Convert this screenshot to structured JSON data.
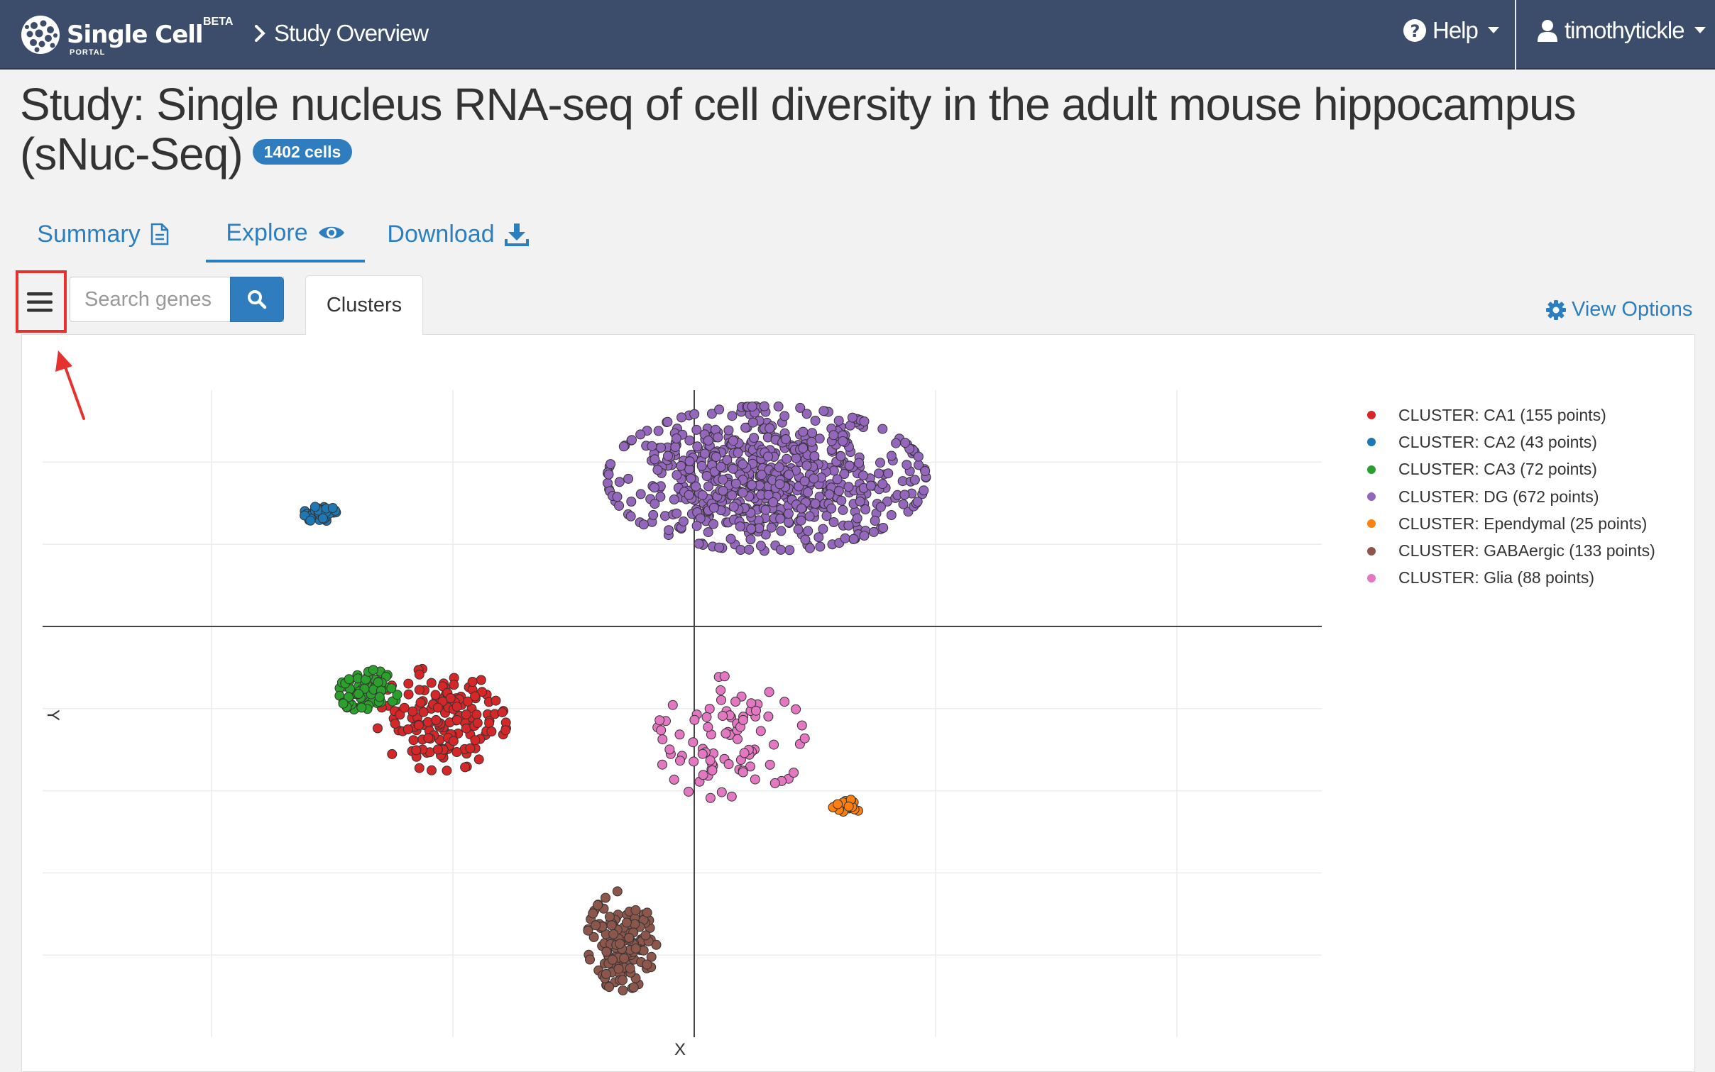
{
  "navbar": {
    "brand_title": "Single Cell",
    "brand_sub": "PORTAL",
    "brand_badge": "BETA",
    "breadcrumb": "Study Overview",
    "help_label": "Help",
    "user_label": "timothytickle"
  },
  "study": {
    "title": "Study: Single nucleus RNA-seq of cell diversity in the adult mouse hippocampus (sNuc-Seq)",
    "cells_badge": "1402 cells"
  },
  "tabs": [
    {
      "label": "Summary",
      "icon": "file-text-icon"
    },
    {
      "label": "Explore",
      "icon": "eye-icon",
      "active": true
    },
    {
      "label": "Download",
      "icon": "download-icon"
    }
  ],
  "explore": {
    "search_placeholder": "Search genes",
    "cluster_tab": "Clusters",
    "view_options": "View Options"
  },
  "colors": {
    "navbar": "#3b4d6a",
    "link": "#2b7fc0",
    "highlight": "#e6322e"
  },
  "chart_data": {
    "type": "scatter",
    "xlabel": "X",
    "ylabel": "Y",
    "grid": true,
    "legend_position": "top-right",
    "series": [
      {
        "name": "CLUSTER: CA1 (155 points)",
        "color": "#d62728",
        "center": [
          -10.5,
          -4.5
        ],
        "spread": [
          2.5,
          2.3
        ],
        "n": 155
      },
      {
        "name": "CLUSTER: CA2 (43 points)",
        "color": "#1f77b4",
        "center": [
          -15.5,
          5.5
        ],
        "spread": [
          0.6,
          0.4
        ],
        "n": 43
      },
      {
        "name": "CLUSTER: CA3 (72 points)",
        "color": "#2ca02c",
        "center": [
          -13.5,
          -3.2
        ],
        "spread": [
          1.1,
          1.0
        ],
        "n": 72
      },
      {
        "name": "CLUSTER: DG (672 points)",
        "color": "#9467bd",
        "center": [
          3.0,
          7.2
        ],
        "spread": [
          6.0,
          3.2
        ],
        "n": 672
      },
      {
        "name": "CLUSTER: Ependymal (25 points)",
        "color": "#ff7f0e",
        "center": [
          6.3,
          -8.8
        ],
        "spread": [
          0.5,
          0.35
        ],
        "n": 25
      },
      {
        "name": "CLUSTER: GABAergic (133 points)",
        "color": "#8c564b",
        "center": [
          -3.0,
          -15.3
        ],
        "spread": [
          1.3,
          2.2
        ],
        "n": 133
      },
      {
        "name": "CLUSTER: Glia (88 points)",
        "color": "#e377c2",
        "center": [
          1.5,
          -5.5
        ],
        "spread": [
          2.8,
          2.8
        ],
        "n": 88
      }
    ]
  }
}
